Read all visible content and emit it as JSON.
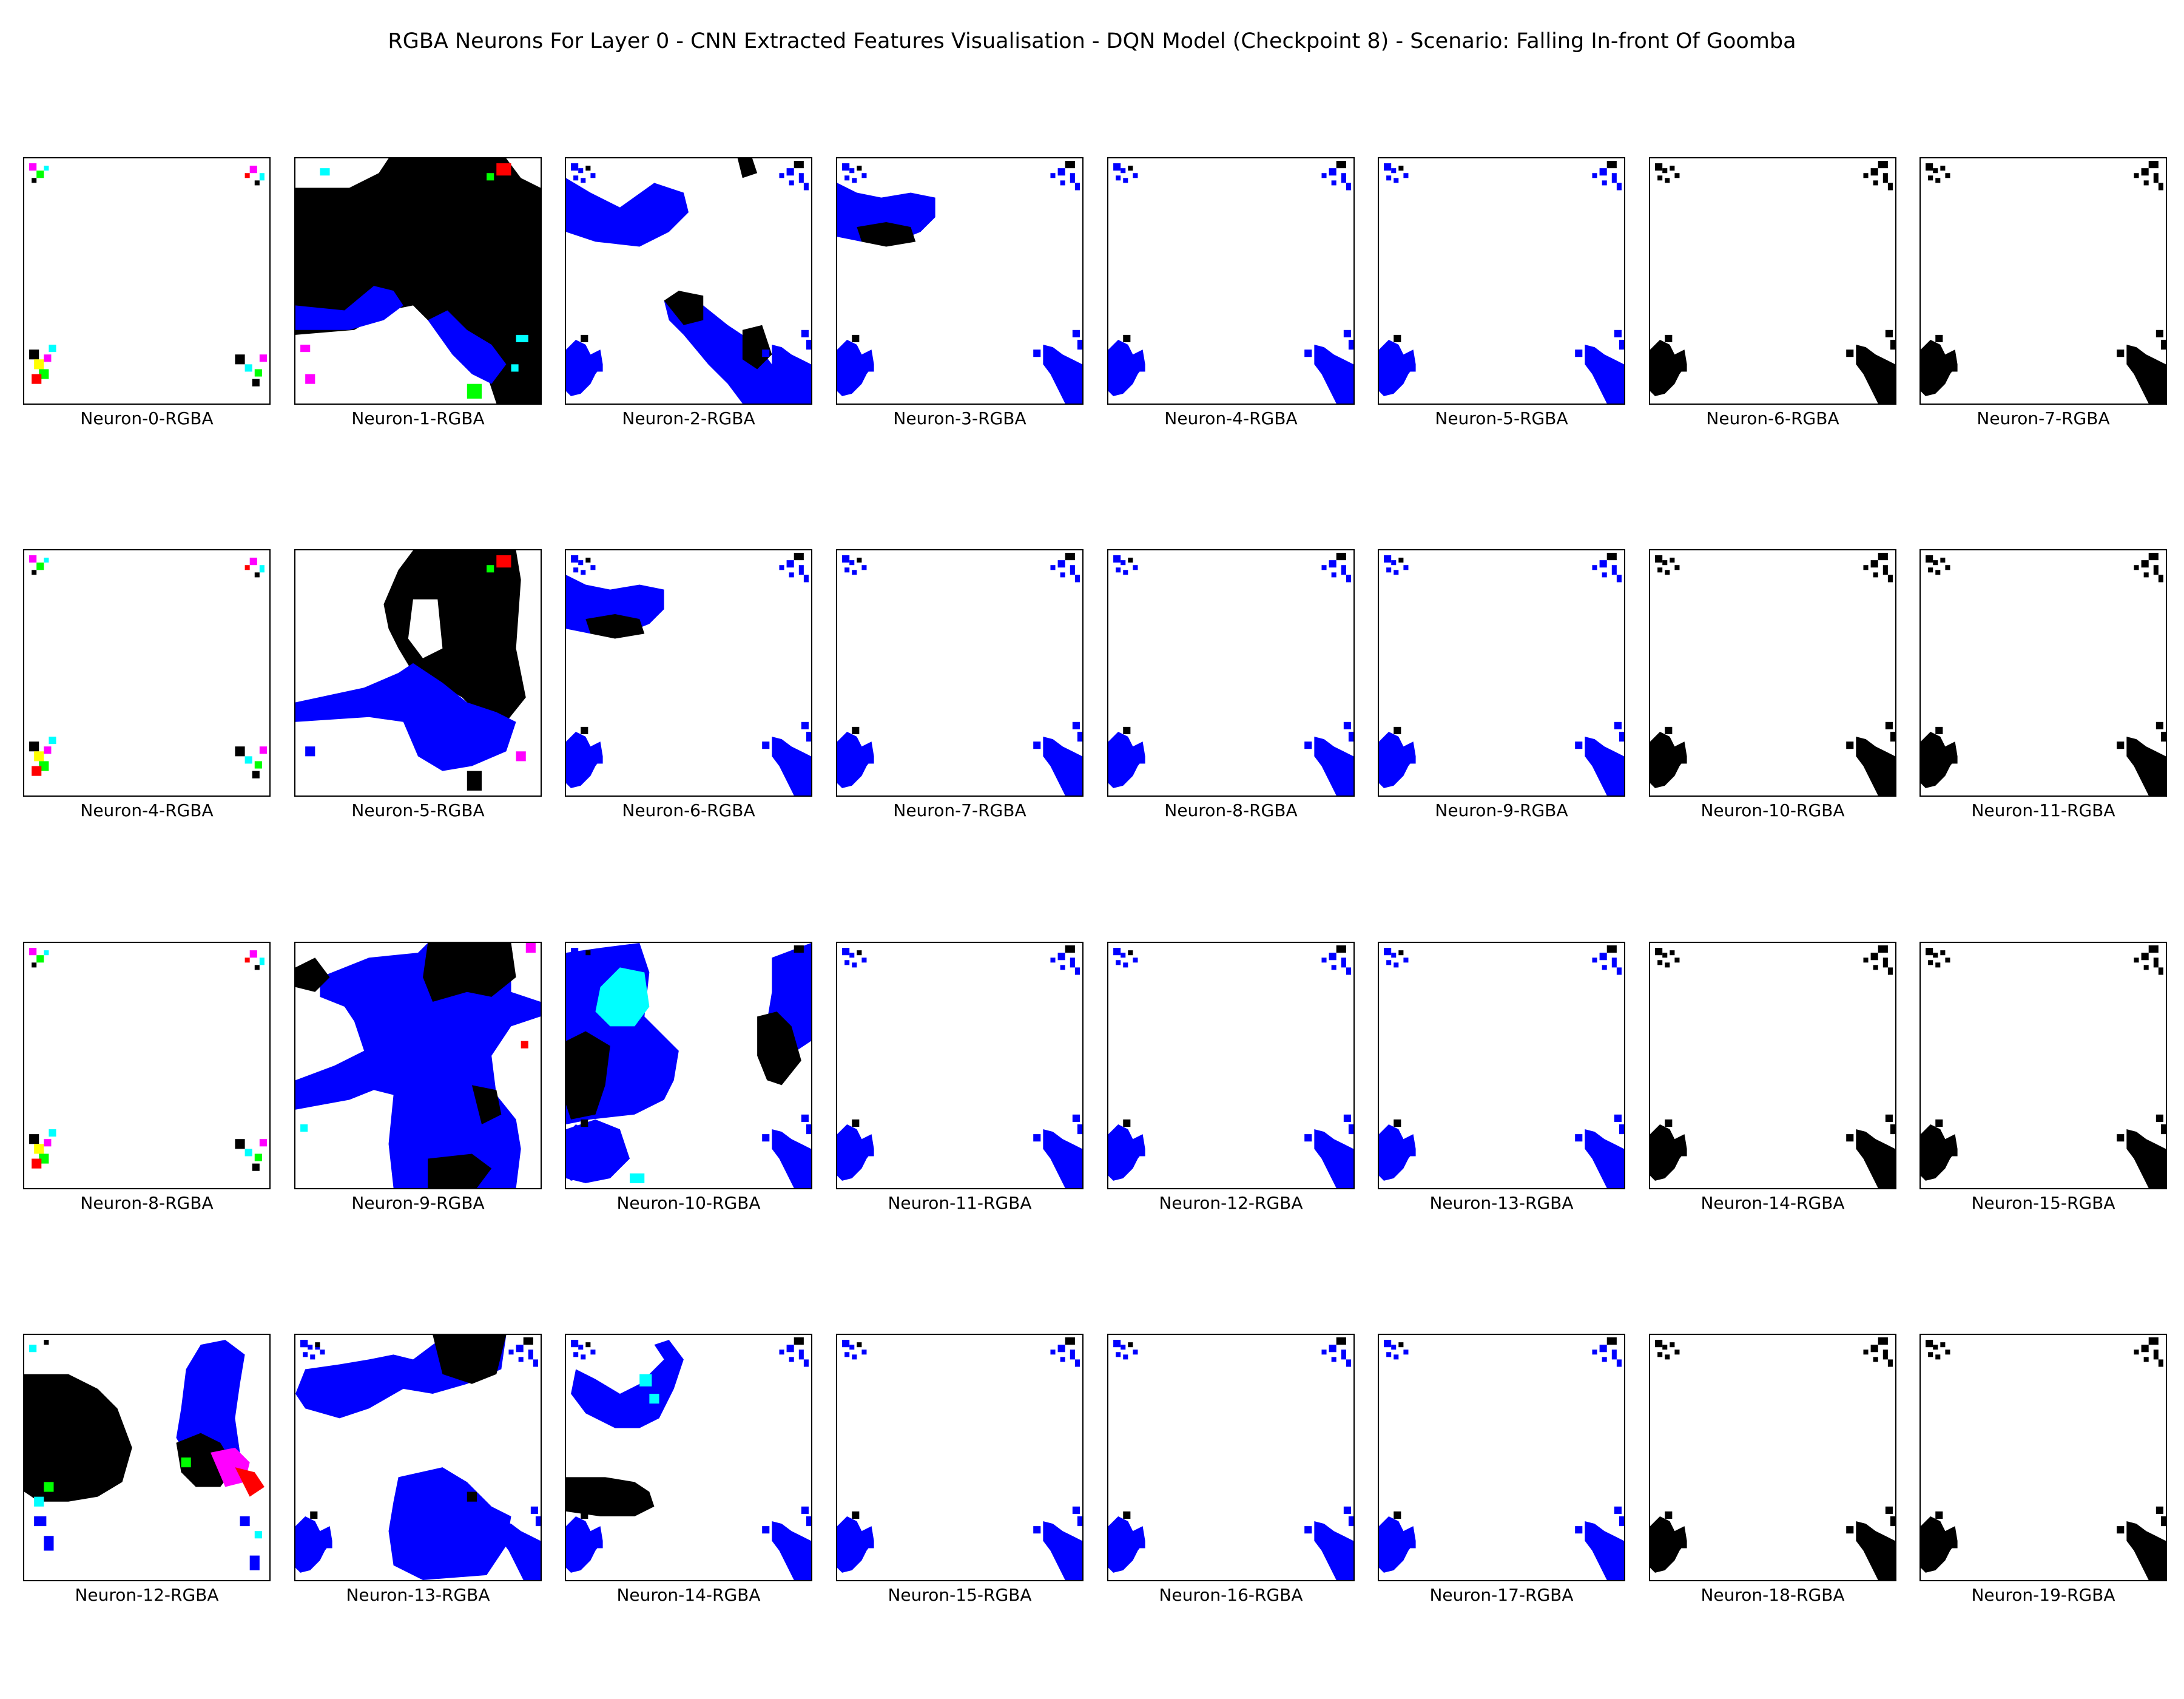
{
  "title": "RGBA Neurons For Layer 0 - CNN Extracted Features Visualisation - DQN Model (Checkpoint 8) - Scenario: Falling In-front Of Goomba",
  "colors": {
    "background": "#ffffff",
    "blue": "#0000ff",
    "black": "#000000",
    "cyan": "#00ffff",
    "magenta": "#ff00ff",
    "red": "#ff0000",
    "green": "#00ff00",
    "yellow": "#ffff00"
  },
  "panels": [
    {
      "label": "Neuron-0-RGBA",
      "style": "sparse-color"
    },
    {
      "label": "Neuron-1-RGBA",
      "style": "dense-black"
    },
    {
      "label": "Neuron-2-RGBA",
      "style": "blue-blobs"
    },
    {
      "label": "Neuron-3-RGBA",
      "style": "blue-top"
    },
    {
      "label": "Neuron-4-RGBA",
      "style": "blue-corners"
    },
    {
      "label": "Neuron-5-RGBA",
      "style": "blue-corners"
    },
    {
      "label": "Neuron-6-RGBA",
      "style": "black-corners"
    },
    {
      "label": "Neuron-7-RGBA",
      "style": "black-corners"
    },
    {
      "label": "Neuron-4-RGBA",
      "style": "sparse-color"
    },
    {
      "label": "Neuron-5-RGBA",
      "style": "dense-black-2"
    },
    {
      "label": "Neuron-6-RGBA",
      "style": "blue-top"
    },
    {
      "label": "Neuron-7-RGBA",
      "style": "blue-corners"
    },
    {
      "label": "Neuron-8-RGBA",
      "style": "blue-corners"
    },
    {
      "label": "Neuron-9-RGBA",
      "style": "blue-corners"
    },
    {
      "label": "Neuron-10-RGBA",
      "style": "black-corners"
    },
    {
      "label": "Neuron-11-RGBA",
      "style": "black-corners"
    },
    {
      "label": "Neuron-8-RGBA",
      "style": "sparse-color"
    },
    {
      "label": "Neuron-9-RGBA",
      "style": "dense-blue"
    },
    {
      "label": "Neuron-10-RGBA",
      "style": "blue-cyan"
    },
    {
      "label": "Neuron-11-RGBA",
      "style": "blue-corners"
    },
    {
      "label": "Neuron-12-RGBA",
      "style": "blue-corners"
    },
    {
      "label": "Neuron-13-RGBA",
      "style": "blue-corners"
    },
    {
      "label": "Neuron-14-RGBA",
      "style": "black-corners"
    },
    {
      "label": "Neuron-15-RGBA",
      "style": "black-corners"
    },
    {
      "label": "Neuron-12-RGBA",
      "style": "black-blue-color"
    },
    {
      "label": "Neuron-13-RGBA",
      "style": "blue-waves"
    },
    {
      "label": "Neuron-14-RGBA",
      "style": "blue-top-black"
    },
    {
      "label": "Neuron-15-RGBA",
      "style": "blue-corners"
    },
    {
      "label": "Neuron-16-RGBA",
      "style": "blue-corners"
    },
    {
      "label": "Neuron-17-RGBA",
      "style": "blue-corners"
    },
    {
      "label": "Neuron-18-RGBA",
      "style": "black-corners"
    },
    {
      "label": "Neuron-19-RGBA",
      "style": "black-corners"
    }
  ]
}
